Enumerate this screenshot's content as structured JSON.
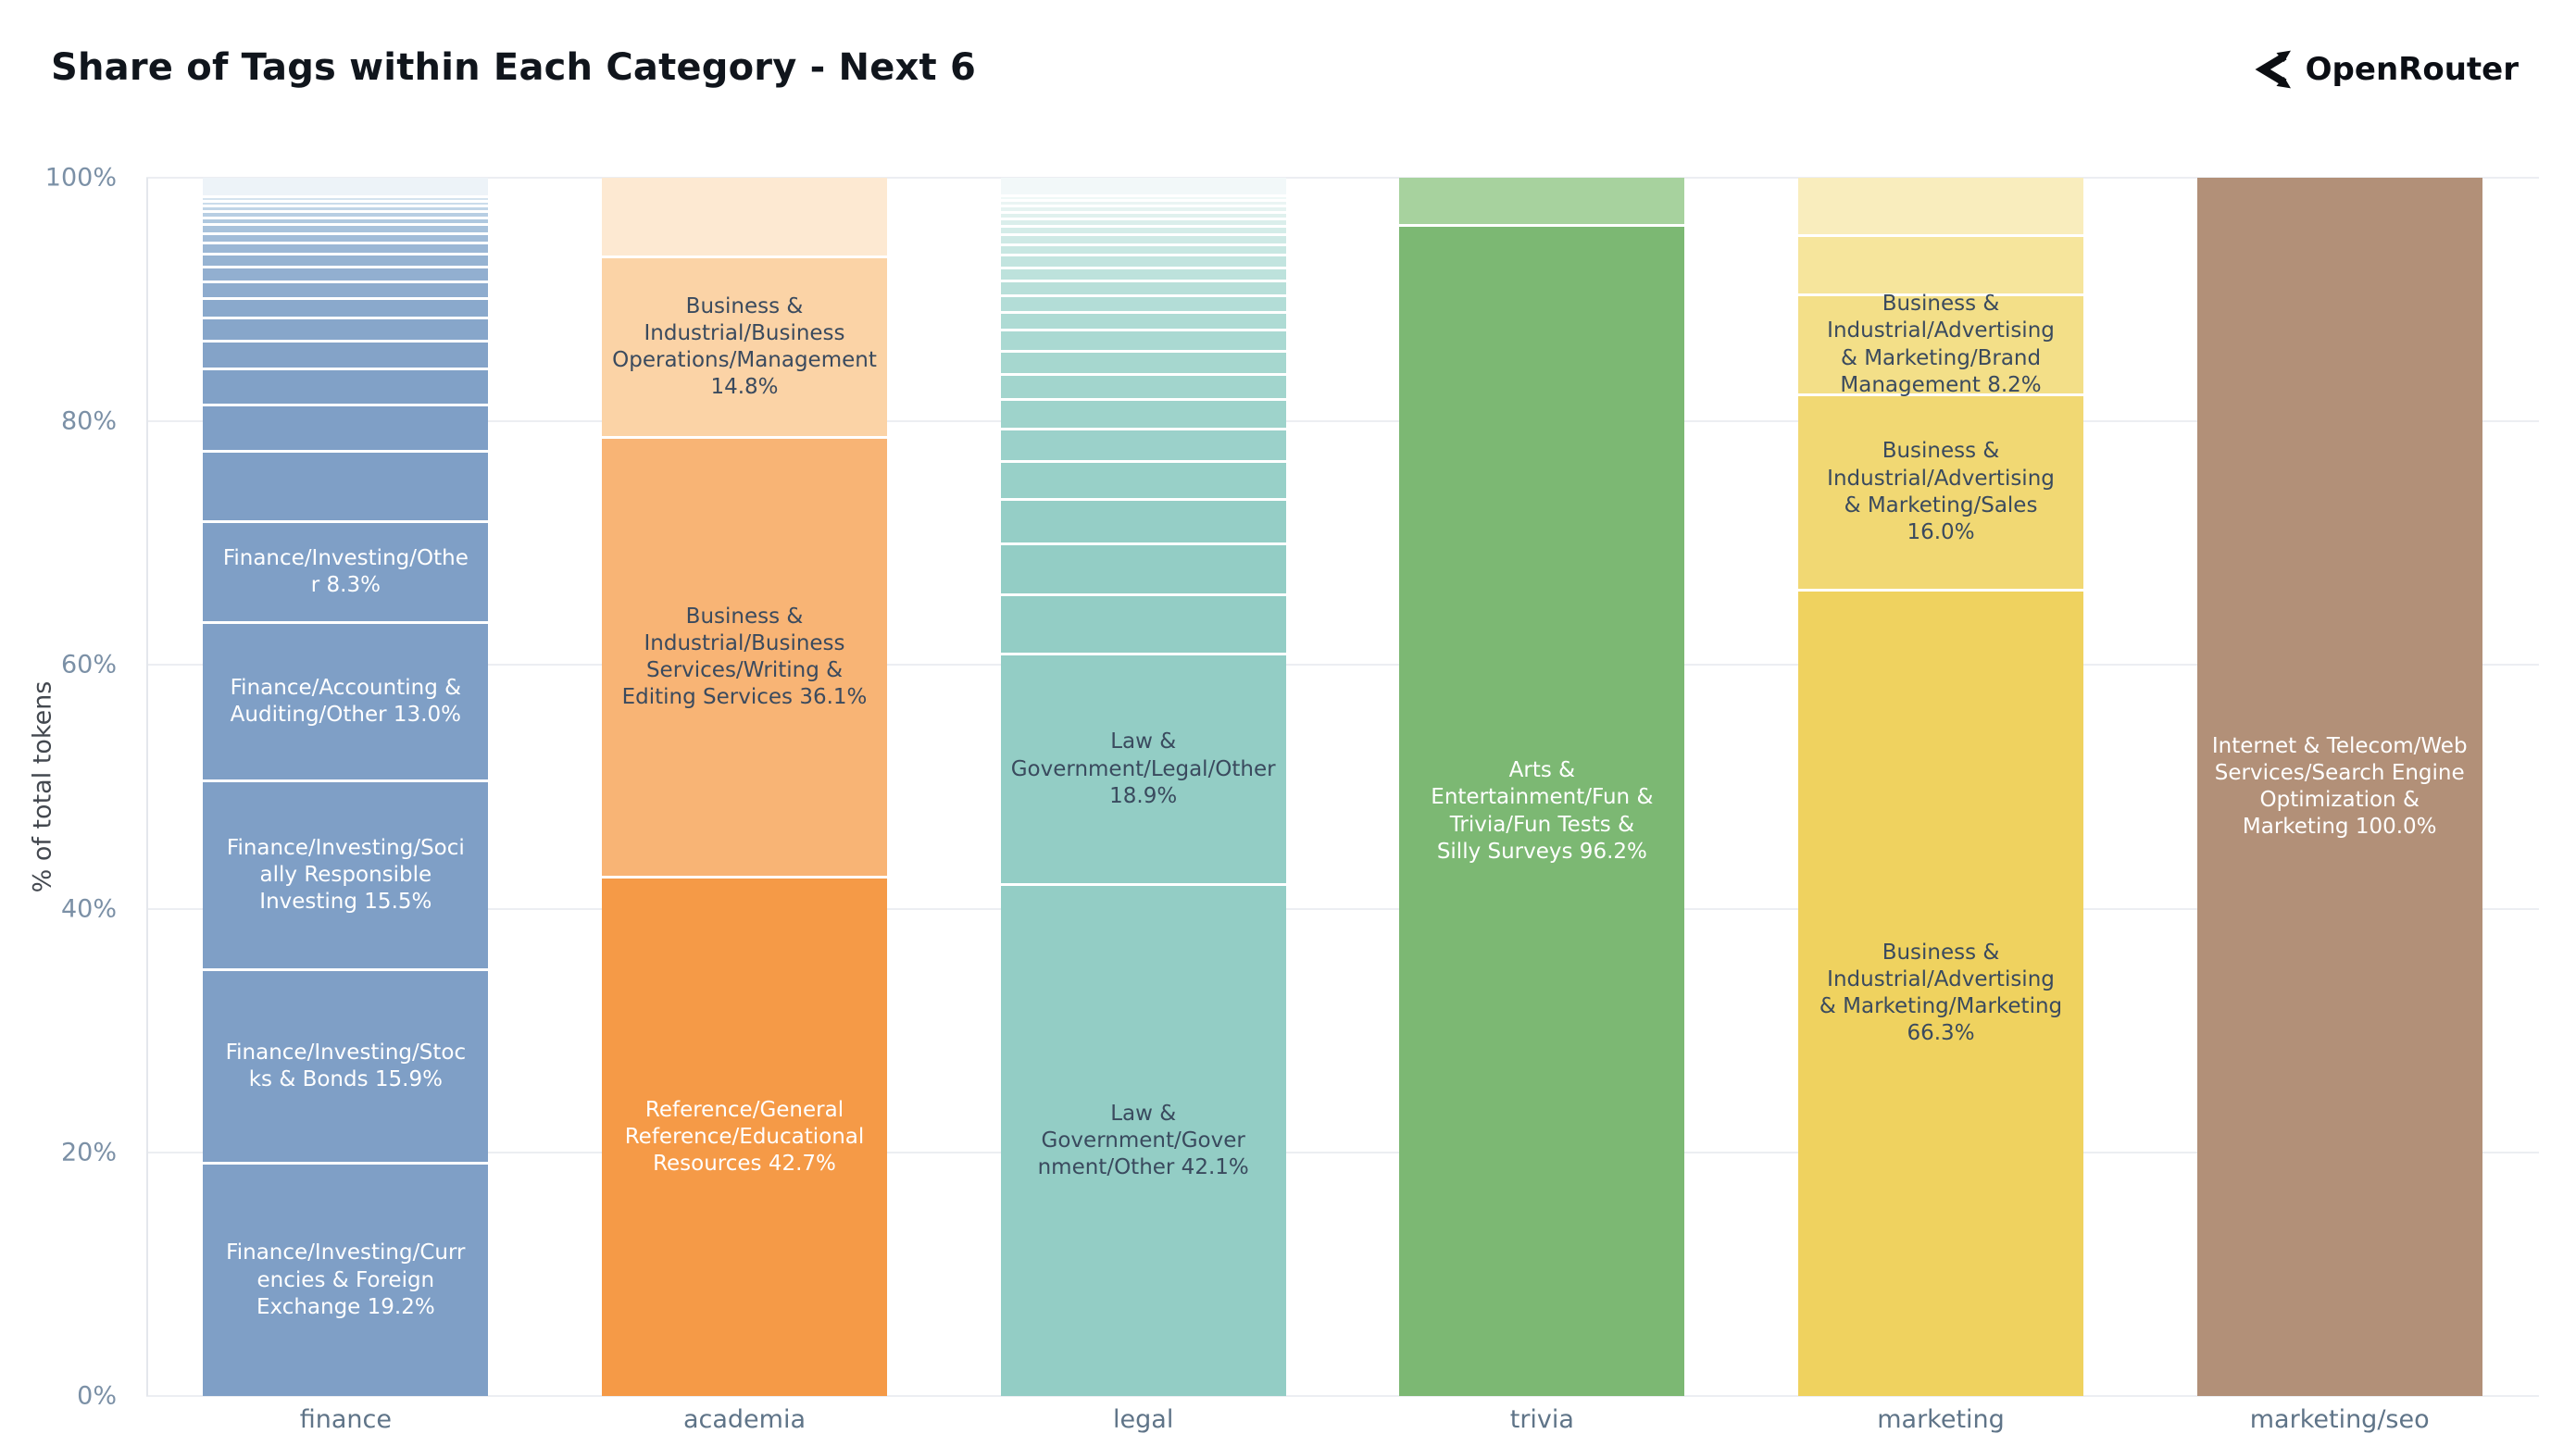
{
  "header": {
    "title": "Share of Tags within Each Category - Next 6",
    "brand": "OpenRouter"
  },
  "chart_data": {
    "type": "bar",
    "stacked": true,
    "normalized_percent": true,
    "title": "Share of Tags within Each Category - Next 6",
    "xlabel": "",
    "ylabel": "% of total tokens",
    "ylim": [
      0,
      100
    ],
    "yticks": [
      "0%",
      "20%",
      "40%",
      "60%",
      "80%",
      "100%"
    ],
    "grid": true,
    "legend": "none",
    "categories": [
      "finance",
      "academia",
      "legal",
      "trivia",
      "marketing",
      "marketing/seo"
    ],
    "bars": [
      {
        "category": "finance",
        "segments": [
          {
            "pct": 19.2,
            "color": "#7f9fc6",
            "text_color": "#ffffff",
            "label": "Finance/Investing/Curr\nencies & Foreign\nExchange 19.2%",
            "tag": "Finance/Investing/Currencies & Foreign Exchange"
          },
          {
            "pct": 15.9,
            "color": "#7f9fc6",
            "text_color": "#ffffff",
            "label": "Finance/Investing/Stoc\nks & Bonds 15.9%",
            "tag": "Finance/Investing/Stocks & Bonds"
          },
          {
            "pct": 15.5,
            "color": "#7f9fc6",
            "text_color": "#ffffff",
            "label": "Finance/Investing/Soci\nally Responsible\nInvesting 15.5%",
            "tag": "Finance/Investing/Socially Responsible Investing"
          },
          {
            "pct": 13.0,
            "color": "#7f9fc6",
            "text_color": "#ffffff",
            "label": "Finance/Accounting &\nAuditing/Other 13.0%",
            "tag": "Finance/Accounting & Auditing/Other"
          },
          {
            "pct": 8.3,
            "color": "#7f9fc6",
            "text_color": "#ffffff",
            "label": "Finance/Investing/Othe\nr 8.3%",
            "tag": "Finance/Investing/Other"
          },
          {
            "pct": 5.8,
            "color": "#7f9fc6",
            "label": null
          },
          {
            "pct": 3.8,
            "color": "#7f9fc6",
            "label": null
          },
          {
            "pct": 2.9,
            "color": "#81a1c7",
            "label": null
          },
          {
            "pct": 2.3,
            "color": "#84a3c8",
            "label": null
          },
          {
            "pct": 1.9,
            "color": "#87a6ca",
            "label": null
          },
          {
            "pct": 1.6,
            "color": "#8aa9cc",
            "label": null
          },
          {
            "pct": 1.4,
            "color": "#8eacce",
            "label": null
          },
          {
            "pct": 1.2,
            "color": "#92afd0",
            "label": null
          },
          {
            "pct": 1.05,
            "color": "#96b3d2",
            "label": null
          },
          {
            "pct": 0.9,
            "color": "#9bb7d5",
            "label": null
          },
          {
            "pct": 0.8,
            "color": "#a1bcd8",
            "label": null
          },
          {
            "pct": 0.7,
            "color": "#a8c2db",
            "label": null
          },
          {
            "pct": 0.6,
            "color": "#afc8df",
            "label": null
          },
          {
            "pct": 0.5,
            "color": "#b7cee3",
            "label": null
          },
          {
            "pct": 0.45,
            "color": "#c0d5e7",
            "label": null
          },
          {
            "pct": 0.4,
            "color": "#cadceb",
            "label": null
          },
          {
            "pct": 0.35,
            "color": "#d5e3ef",
            "label": null
          },
          {
            "pct": 1.45,
            "color": "#edf3f8",
            "label": null
          }
        ]
      },
      {
        "category": "academia",
        "segments": [
          {
            "pct": 42.7,
            "color": "#f59a47",
            "text_color": "#ffffff",
            "label": "Reference/General\nReference/Educational\nResources 42.7%",
            "tag": "Reference/General Reference/Educational Resources"
          },
          {
            "pct": 36.1,
            "color": "#f8b475",
            "text_color": "#3a4a5e",
            "label": "Business &\nIndustrial/Business\nServices/Writing &\nEditing Services 36.1%",
            "tag": "Business & Industrial/Business Services/Writing & Editing Services"
          },
          {
            "pct": 14.8,
            "color": "#fbd3a6",
            "text_color": "#3a4a5e",
            "label": "Business &\nIndustrial/Business\nOperations/Management\n14.8%",
            "tag": "Business & Industrial/Business Operations/Management"
          },
          {
            "pct": 6.4,
            "color": "#fde9d2",
            "label": null
          }
        ]
      },
      {
        "category": "legal",
        "segments": [
          {
            "pct": 42.1,
            "color": "#93cdc5",
            "text_color": "#3a4a5e",
            "label": "Law & Government/Gover\nnment/Other 42.1%",
            "tag": "Law & Government/Government/Other"
          },
          {
            "pct": 18.9,
            "color": "#93cdc5",
            "text_color": "#3a4a5e",
            "label": "Law &\nGovernment/Legal/Other\n18.9%",
            "tag": "Law & Government/Legal/Other"
          },
          {
            "pct": 4.9,
            "color": "#93cdc5",
            "label": null
          },
          {
            "pct": 4.2,
            "color": "#93cdc5",
            "label": null
          },
          {
            "pct": 3.6,
            "color": "#95cec6",
            "label": null
          },
          {
            "pct": 3.1,
            "color": "#98d0c8",
            "label": null
          },
          {
            "pct": 2.7,
            "color": "#9bd1ca",
            "label": null
          },
          {
            "pct": 2.4,
            "color": "#9ed3cb",
            "label": null
          },
          {
            "pct": 2.1,
            "color": "#a2d5cd",
            "label": null
          },
          {
            "pct": 1.9,
            "color": "#a6d7cf",
            "label": null
          },
          {
            "pct": 1.7,
            "color": "#aad9d2",
            "label": null
          },
          {
            "pct": 1.5,
            "color": "#aedbd4",
            "label": null
          },
          {
            "pct": 1.35,
            "color": "#b3ddd7",
            "label": null
          },
          {
            "pct": 1.2,
            "color": "#b8dfd9",
            "label": null
          },
          {
            "pct": 1.1,
            "color": "#bde2dc",
            "label": null
          },
          {
            "pct": 1.0,
            "color": "#c2e4df",
            "label": null
          },
          {
            "pct": 0.9,
            "color": "#c8e7e2",
            "label": null
          },
          {
            "pct": 0.8,
            "color": "#cee9e5",
            "label": null
          },
          {
            "pct": 0.7,
            "color": "#d4ece8",
            "label": null
          },
          {
            "pct": 0.6,
            "color": "#daeeeb",
            "label": null
          },
          {
            "pct": 0.55,
            "color": "#e0f1ee",
            "label": null
          },
          {
            "pct": 0.5,
            "color": "#e5f3f1",
            "label": null
          },
          {
            "pct": 0.45,
            "color": "#eaf5f4",
            "label": null
          },
          {
            "pct": 0.4,
            "color": "#eff8f7",
            "label": null
          },
          {
            "pct": 1.35,
            "color": "#f2f8f9",
            "label": null
          }
        ]
      },
      {
        "category": "trivia",
        "segments": [
          {
            "pct": 96.2,
            "color": "#7cb873",
            "text_color": "#ffffff",
            "label": "Arts &\nEntertainment/Fun &\nTrivia/Fun Tests &\nSilly Surveys 96.2%",
            "tag": "Arts & Entertainment/Fun & Trivia/Fun Tests & Silly Surveys"
          },
          {
            "pct": 3.8,
            "color": "#a7d29e",
            "label": null
          }
        ]
      },
      {
        "category": "marketing",
        "segments": [
          {
            "pct": 66.3,
            "color": "#efd25f",
            "text_color": "#3a4a5e",
            "label": "Business &\nIndustrial/Advertising\n& Marketing/Marketing\n66.3%",
            "tag": "Business & Industrial/Advertising & Marketing/Marketing"
          },
          {
            "pct": 16.0,
            "color": "#f1d873",
            "text_color": "#3a4a5e",
            "label": "Business &\nIndustrial/Advertising\n& Marketing/Sales\n16.0%",
            "tag": "Business & Industrial/Advertising & Marketing/Sales"
          },
          {
            "pct": 8.2,
            "color": "#f3df88",
            "text_color": "#3a4a5e",
            "label": "Business &\nIndustrial/Advertising\n& Marketing/Brand\nManagement 8.2%",
            "tag": "Business & Industrial/Advertising & Marketing/Brand Management"
          },
          {
            "pct": 4.9,
            "color": "#f6e59c",
            "label": null
          },
          {
            "pct": 4.6,
            "color": "#f9edbd",
            "label": null
          }
        ]
      },
      {
        "category": "marketing/seo",
        "segments": [
          {
            "pct": 100.0,
            "color": "#b29078",
            "text_color": "#ffffff",
            "label": "Internet & Telecom/Web\nServices/Search Engine\nOptimization &\nMarketing 100.0%",
            "tag": "Internet & Telecom/Web Services/Search Engine Optimization & Marketing"
          }
        ]
      }
    ]
  }
}
